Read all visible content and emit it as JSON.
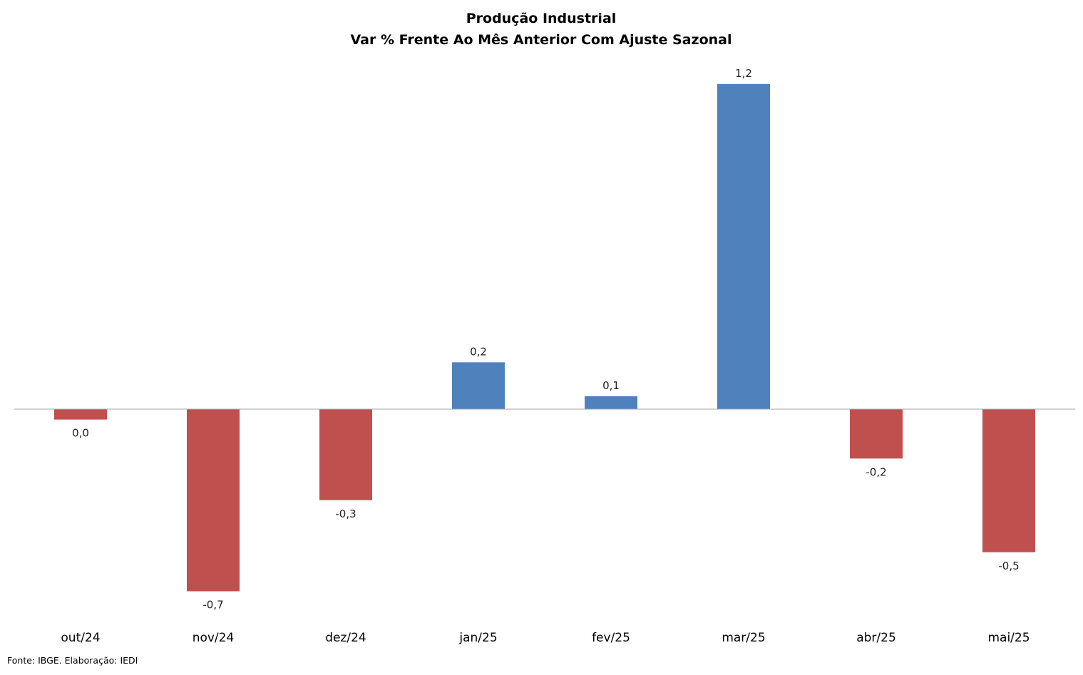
{
  "chart_data": {
    "type": "bar",
    "title": "Produção Industrial",
    "subtitle": "Var % Frente Ao Mês Anterior Com Ajuste Sazonal",
    "categories": [
      "out/24",
      "nov/24",
      "dez/24",
      "jan/25",
      "fev/25",
      "mar/25",
      "abr/25",
      "mai/25"
    ],
    "values": [
      -0.04,
      -0.7,
      -0.35,
      0.18,
      0.05,
      1.25,
      -0.19,
      -0.55
    ],
    "data_labels": [
      "0,0",
      "-0,7",
      "-0,3",
      "0,2",
      "0,1",
      "1,2",
      "-0,2",
      "-0,5"
    ],
    "ylim": [
      -0.8,
      1.35
    ],
    "grid": false,
    "legend": "none",
    "y_axis_visible": false,
    "colors": {
      "positive": "#4F81BD",
      "negative": "#C0504D",
      "zero_line": "#A6A6A6"
    }
  },
  "footer": {
    "source": "Fonte: IBGE. Elaboração: IEDI"
  }
}
